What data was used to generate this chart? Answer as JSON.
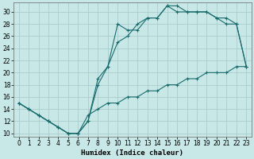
{
  "xlabel": "Humidex (Indice chaleur)",
  "bg_color": "#c8e8e8",
  "grid_color": "#a8cccc",
  "line_color": "#1a6b6b",
  "xlim": [
    -0.5,
    23.5
  ],
  "ylim": [
    9.5,
    31.5
  ],
  "xticks": [
    0,
    1,
    2,
    3,
    4,
    5,
    6,
    7,
    8,
    9,
    10,
    11,
    12,
    13,
    14,
    15,
    16,
    17,
    18,
    19,
    20,
    21,
    22,
    23
  ],
  "yticks": [
    10,
    12,
    14,
    16,
    18,
    20,
    22,
    24,
    26,
    28,
    30
  ],
  "curve1_x": [
    0,
    1,
    2,
    3,
    4,
    5,
    6,
    7,
    8,
    9,
    10,
    11,
    12,
    13,
    14,
    15,
    16,
    17,
    18,
    19,
    20,
    21,
    22,
    23
  ],
  "curve1_y": [
    15,
    14,
    13,
    12,
    11,
    10,
    10,
    12,
    19,
    21,
    28,
    27,
    27,
    29,
    29,
    31,
    31,
    30,
    30,
    30,
    29,
    28,
    28,
    21
  ],
  "curve2_x": [
    0,
    1,
    2,
    3,
    4,
    5,
    6,
    7,
    8,
    9,
    10,
    11,
    12,
    13,
    14,
    15,
    16,
    17,
    18,
    19,
    20,
    21,
    22,
    23
  ],
  "curve2_y": [
    15,
    14,
    13,
    12,
    11,
    10,
    10,
    12,
    18,
    21,
    25,
    26,
    28,
    29,
    29,
    31,
    30,
    30,
    30,
    30,
    29,
    29,
    28,
    21
  ],
  "curve3_x": [
    0,
    1,
    2,
    3,
    4,
    5,
    6,
    7,
    8,
    9,
    10,
    11,
    12,
    13,
    14,
    15,
    16,
    17,
    18,
    19,
    20,
    21,
    22,
    23
  ],
  "curve3_y": [
    15,
    14,
    13,
    12,
    11,
    10,
    10,
    13,
    14,
    15,
    15,
    16,
    16,
    17,
    17,
    18,
    18,
    19,
    19,
    20,
    20,
    20,
    21,
    21
  ],
  "marker_size": 2.5,
  "line_width": 0.8,
  "tick_fontsize": 5.5,
  "xlabel_fontsize": 6.5
}
